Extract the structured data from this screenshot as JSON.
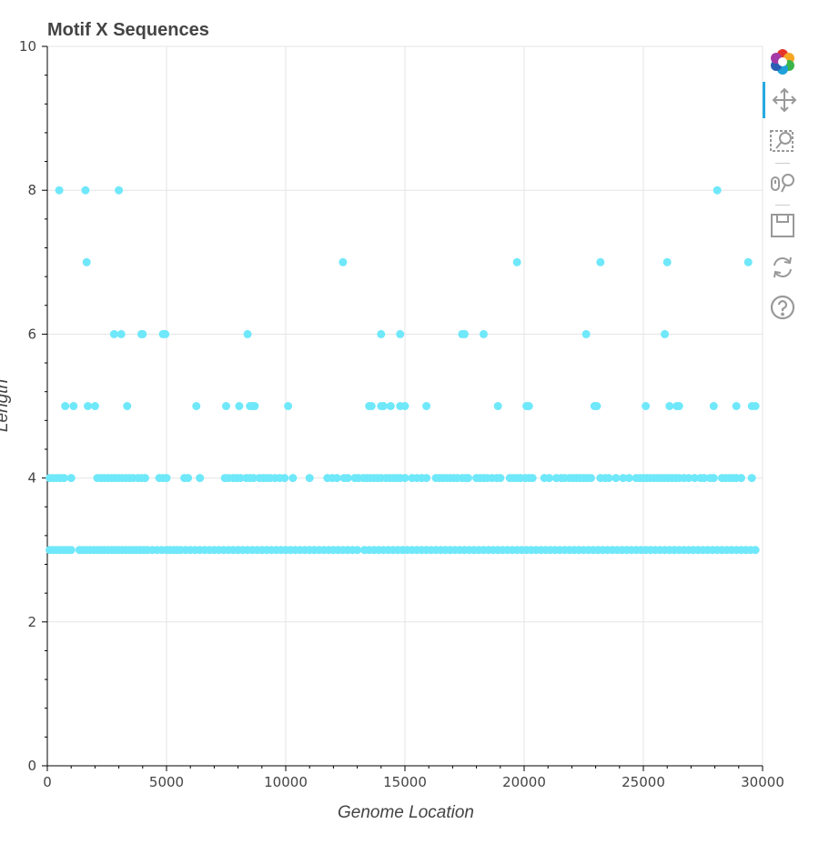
{
  "toolbar": {
    "tools": [
      {
        "name": "bokeh-logo-icon",
        "active": false
      },
      {
        "name": "pan-icon",
        "active": true
      },
      {
        "name": "box-zoom-icon",
        "active": false
      },
      {
        "name": "wheel-zoom-icon",
        "active": false
      },
      {
        "name": "save-icon",
        "active": false
      },
      {
        "name": "reset-icon",
        "active": false
      },
      {
        "name": "help-icon",
        "active": false
      }
    ]
  },
  "chart_data": {
    "type": "scatter",
    "title": "Motif X Sequences",
    "xlabel": "Genome Location",
    "ylabel": "Length",
    "xlim": [
      0,
      30000
    ],
    "ylim": [
      0,
      10
    ],
    "xticks": [
      0,
      5000,
      10000,
      15000,
      20000,
      25000,
      30000
    ],
    "yticks": [
      0,
      2,
      4,
      6,
      8,
      10
    ],
    "grid": true,
    "marker_color": "#6fe8fa",
    "points": {
      "y8": [
        500,
        1600,
        3000,
        28100
      ],
      "y7": [
        1650,
        12400,
        19700,
        23200,
        26000,
        29400
      ],
      "y6": [
        2800,
        3100,
        3950,
        4000,
        4850,
        4950,
        8400,
        14000,
        14800,
        17400,
        17500,
        18300,
        22600,
        25900
      ],
      "y5": [
        750,
        1100,
        1700,
        2000,
        3350,
        6250,
        7500,
        8050,
        8500,
        8600,
        8700,
        10100,
        13500,
        13600,
        14000,
        14100,
        14400,
        14800,
        15000,
        15900,
        18900,
        20100,
        20200,
        22950,
        23050,
        25100,
        26100,
        26400,
        26500,
        27950,
        28900,
        29550,
        29700
      ],
      "y4": [
        100,
        250,
        400,
        550,
        700,
        1000,
        2100,
        2250,
        2400,
        2550,
        2700,
        2850,
        3000,
        3150,
        3300,
        3450,
        3600,
        3800,
        3950,
        4100,
        4700,
        4850,
        5000,
        5750,
        5900,
        6400,
        7450,
        7600,
        7800,
        7950,
        8100,
        8350,
        8500,
        8650,
        8900,
        9050,
        9200,
        9350,
        9550,
        9750,
        9950,
        10300,
        11000,
        11750,
        11950,
        12150,
        12450,
        12600,
        12900,
        13050,
        13250,
        13400,
        13550,
        13700,
        13850,
        14000,
        14200,
        14350,
        14500,
        14650,
        14800,
        15000,
        15300,
        15500,
        15700,
        15900,
        16300,
        16450,
        16600,
        16750,
        16900,
        17050,
        17200,
        17400,
        17550,
        17650,
        18000,
        18150,
        18300,
        18450,
        18650,
        18850,
        19000,
        19400,
        19550,
        19700,
        19850,
        20050,
        20200,
        20350,
        20850,
        21050,
        21350,
        21550,
        21700,
        21900,
        22050,
        22200,
        22350,
        22500,
        22650,
        22800,
        23200,
        23400,
        23550,
        23850,
        24150,
        24400,
        24700,
        24850,
        25000,
        25150,
        25300,
        25450,
        25600,
        25750,
        25900,
        26050,
        26200,
        26350,
        26500,
        26700,
        26900,
        27150,
        27400,
        27550,
        27800,
        27950,
        28300,
        28450,
        28600,
        28750,
        28900,
        29100,
        29550
      ],
      "y3": [
        100,
        250,
        400,
        550,
        700,
        850,
        1000,
        1350,
        1500,
        1650,
        1800,
        1950,
        2100,
        2250,
        2400,
        2550,
        2700,
        2850,
        3000,
        3150,
        3300,
        3450,
        3600,
        3750,
        3900,
        4050,
        4200,
        4400,
        4600,
        4800,
        5000,
        5150,
        5300,
        5450,
        5600,
        5800,
        6000,
        6200,
        6400,
        6600,
        6800,
        7000,
        7200,
        7400,
        7600,
        7800,
        8000,
        8200,
        8400,
        8600,
        8800,
        9000,
        9200,
        9400,
        9600,
        9800,
        10000,
        10200,
        10400,
        10600,
        10800,
        11000,
        11200,
        11400,
        11600,
        11800,
        12000,
        12200,
        12400,
        12600,
        12800,
        13000,
        13300,
        13500,
        13700,
        13900,
        14100,
        14300,
        14500,
        14700,
        14900,
        15100,
        15300,
        15500,
        15700,
        15900,
        16100,
        16300,
        16500,
        16700,
        16900,
        17100,
        17300,
        17500,
        17700,
        17900,
        18100,
        18300,
        18500,
        18700,
        18900,
        19100,
        19300,
        19500,
        19700,
        19900,
        20100,
        20300,
        20500,
        20700,
        20900,
        21100,
        21300,
        21500,
        21700,
        21900,
        22100,
        22300,
        22500,
        22700,
        22900,
        23100,
        23300,
        23500,
        23700,
        23900,
        24100,
        24300,
        24500,
        24700,
        24900,
        25100,
        25300,
        25500,
        25700,
        25900,
        26100,
        26300,
        26500,
        26700,
        26900,
        27100,
        27300,
        27500,
        27700,
        27900,
        28100,
        28300,
        28500,
        28700,
        28900,
        29100,
        29300,
        29500,
        29700
      ]
    }
  }
}
